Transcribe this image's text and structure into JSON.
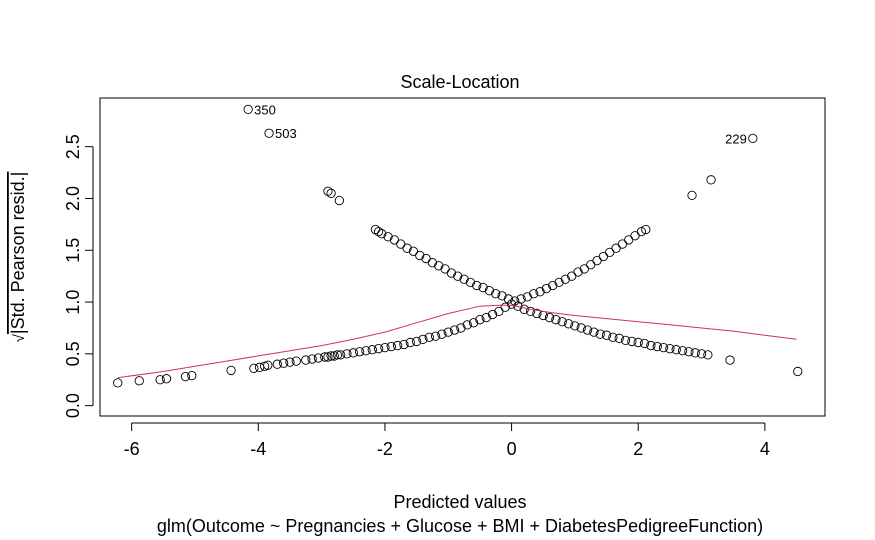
{
  "chart_data": {
    "type": "scatter",
    "title": "Scale-Location",
    "xlabel": "Predicted values",
    "ylabel": "√|Std. Pearson resid.|",
    "ylabel_radical": "√",
    "ylabel_body": "|Std. Pearson resid.|",
    "subtitle": "glm(Outcome ~ Pregnancies + Glucose + BMI + DiabetesPedigreeFunction)",
    "xlim": [
      -6.5,
      4.95
    ],
    "ylim": [
      -0.1,
      2.97
    ],
    "x_ticks": [
      -6,
      -4,
      -2,
      0,
      2,
      4
    ],
    "x_tick_labels": [
      "-6",
      "-4",
      "-2",
      "0",
      "2",
      "4"
    ],
    "y_ticks": [
      0.0,
      0.5,
      1.0,
      1.5,
      2.0,
      2.5
    ],
    "y_tick_labels": [
      "0.0",
      "0.5",
      "1.0",
      "1.5",
      "2.0",
      "2.5"
    ],
    "grid": false,
    "colors": {
      "points": "#000000",
      "smooth": "#c8384e",
      "axis": "#000000"
    },
    "series": [
      {
        "kind": "points",
        "x": [
          -6.22,
          -5.88,
          -5.55,
          -5.45,
          -5.15,
          -5.05,
          -4.43,
          -4.07,
          -3.98,
          -3.9,
          -3.85,
          -3.7,
          -3.6,
          -3.5,
          -3.4,
          -3.25,
          -3.15,
          -3.05,
          -2.95,
          -2.9,
          -2.85,
          -2.8,
          -2.75,
          -2.7,
          -2.6,
          -2.5,
          -2.4,
          -2.3,
          -2.2,
          -2.1,
          -2.0,
          -1.9,
          -1.8,
          -1.7,
          -1.6,
          -1.5,
          -1.4,
          -1.3,
          -1.2,
          -1.1,
          -1.0,
          -0.9,
          -0.8,
          -0.7,
          -0.6,
          -0.5,
          -0.4,
          -0.3,
          -0.2,
          -0.1,
          0.0,
          0.1,
          0.2,
          0.3,
          0.4,
          0.5,
          0.6,
          0.7,
          0.8,
          0.9,
          1.0,
          1.1,
          1.2,
          1.3,
          1.4,
          1.5,
          1.6,
          1.7,
          1.8,
          1.9,
          2.0,
          2.1,
          2.2,
          2.3,
          2.4,
          2.5,
          2.6,
          2.7,
          2.8,
          2.9,
          3.0,
          3.1,
          3.45,
          4.52,
          -2.15,
          -2.1,
          -2.05,
          -1.95,
          -1.85,
          -1.75,
          -1.65,
          -1.55,
          -1.45,
          -1.35,
          -1.25,
          -1.15,
          -1.05,
          -0.95,
          -0.85,
          -0.75,
          -0.65,
          -0.55,
          -0.45,
          -0.35,
          -0.25,
          -0.15,
          -0.05,
          0.05,
          0.15,
          0.25,
          0.35,
          0.45,
          0.55,
          0.65,
          0.75,
          0.85,
          0.95,
          1.05,
          1.15,
          1.25,
          1.35,
          1.45,
          1.55,
          1.65,
          1.75,
          1.85,
          1.95,
          2.05,
          2.12,
          2.85,
          3.15,
          -2.85,
          -2.9,
          -2.72
        ],
        "y": [
          0.22,
          0.24,
          0.25,
          0.26,
          0.28,
          0.29,
          0.34,
          0.36,
          0.37,
          0.38,
          0.39,
          0.4,
          0.41,
          0.42,
          0.43,
          0.44,
          0.45,
          0.46,
          0.47,
          0.47,
          0.48,
          0.48,
          0.49,
          0.49,
          0.5,
          0.51,
          0.52,
          0.53,
          0.54,
          0.55,
          0.56,
          0.57,
          0.58,
          0.59,
          0.61,
          0.62,
          0.64,
          0.66,
          0.67,
          0.69,
          0.71,
          0.73,
          0.75,
          0.78,
          0.8,
          0.83,
          0.85,
          0.88,
          0.91,
          0.95,
          0.98,
          0.96,
          0.93,
          0.91,
          0.89,
          0.87,
          0.85,
          0.83,
          0.81,
          0.79,
          0.77,
          0.75,
          0.73,
          0.71,
          0.69,
          0.68,
          0.66,
          0.65,
          0.63,
          0.62,
          0.61,
          0.6,
          0.58,
          0.57,
          0.56,
          0.55,
          0.54,
          0.53,
          0.52,
          0.51,
          0.5,
          0.49,
          0.44,
          0.33,
          1.7,
          1.68,
          1.66,
          1.63,
          1.6,
          1.56,
          1.52,
          1.49,
          1.45,
          1.42,
          1.38,
          1.35,
          1.32,
          1.28,
          1.25,
          1.22,
          1.19,
          1.16,
          1.14,
          1.11,
          1.08,
          1.06,
          1.03,
          1.01,
          1.03,
          1.05,
          1.08,
          1.1,
          1.13,
          1.16,
          1.19,
          1.22,
          1.25,
          1.29,
          1.32,
          1.36,
          1.4,
          1.44,
          1.48,
          1.52,
          1.56,
          1.6,
          1.64,
          1.68,
          1.7,
          2.03,
          2.18,
          2.05,
          2.07,
          1.98
        ]
      },
      {
        "kind": "smooth",
        "x": [
          -6.22,
          -5.5,
          -5.0,
          -4.5,
          -4.0,
          -3.5,
          -3.0,
          -2.5,
          -2.0,
          -1.5,
          -1.0,
          -0.5,
          -0.2,
          0.0,
          0.3,
          0.6,
          1.0,
          1.5,
          2.0,
          2.5,
          3.0,
          3.5,
          4.0,
          4.5
        ],
        "y": [
          0.27,
          0.33,
          0.38,
          0.43,
          0.48,
          0.53,
          0.58,
          0.64,
          0.71,
          0.8,
          0.89,
          0.96,
          0.97,
          0.97,
          0.93,
          0.9,
          0.87,
          0.84,
          0.81,
          0.78,
          0.75,
          0.72,
          0.68,
          0.64
        ]
      }
    ],
    "annotations": [
      {
        "label": "350",
        "x": -4.16,
        "y": 2.86,
        "side": "right"
      },
      {
        "label": "503",
        "x": -3.83,
        "y": 2.63,
        "side": "right"
      },
      {
        "label": "229",
        "x": 3.81,
        "y": 2.58,
        "side": "left"
      }
    ]
  }
}
